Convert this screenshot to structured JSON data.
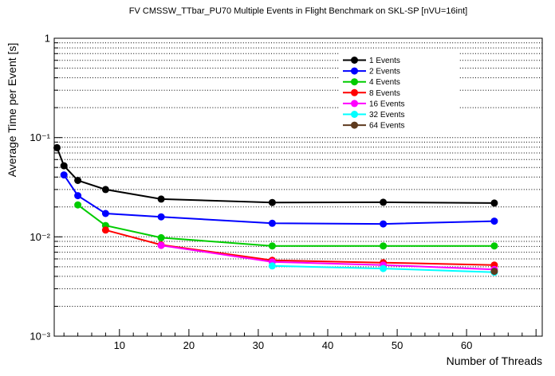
{
  "chart_data": {
    "type": "line",
    "title": "FV CMSSW_TTbar_PU70 Multiple Events in Flight Benchmark on SKL-SP [nVU=16int]",
    "xlabel": "Number of Threads",
    "ylabel": "Average Time per Event [s]",
    "x_scale": "linear",
    "y_scale": "log",
    "x_range": [
      0.6,
      70.9
    ],
    "y_range": [
      0.001,
      1
    ],
    "x_major_ticks": [
      10,
      20,
      30,
      40,
      50,
      60
    ],
    "x_minor_tick_step": 2,
    "y_decade_labels": [
      "1",
      "10⁻¹",
      "10⁻²",
      "10⁻³"
    ],
    "grid": "horizontal-dotted",
    "legend_position": "top-right",
    "series": [
      {
        "name": "1 Events",
        "color": "#000000",
        "x": [
          1,
          2,
          4,
          8,
          16,
          32,
          48,
          64
        ],
        "y": [
          0.079,
          0.052,
          0.037,
          0.03,
          0.024,
          0.0222,
          0.0223,
          0.0219
        ]
      },
      {
        "name": "2 Events",
        "color": "#0000ff",
        "x": [
          2,
          4,
          8,
          16,
          32,
          48,
          64
        ],
        "y": [
          0.042,
          0.026,
          0.0172,
          0.0159,
          0.0137,
          0.0135,
          0.0144
        ]
      },
      {
        "name": "4 Events",
        "color": "#00cc00",
        "x": [
          4,
          8,
          16,
          32,
          48,
          64
        ],
        "y": [
          0.021,
          0.013,
          0.0098,
          0.0081,
          0.0081,
          0.0081
        ]
      },
      {
        "name": "8 Events",
        "color": "#ff0000",
        "x": [
          8,
          16,
          32,
          48,
          64
        ],
        "y": [
          0.0117,
          0.0083,
          0.0058,
          0.0055,
          0.0052
        ]
      },
      {
        "name": "16 Events",
        "color": "#ff00ff",
        "x": [
          16,
          32,
          48,
          64
        ],
        "y": [
          0.0082,
          0.0056,
          0.0052,
          0.0047
        ]
      },
      {
        "name": "32 Events",
        "color": "#00ffff",
        "x": [
          32,
          48,
          64
        ],
        "y": [
          0.0051,
          0.0048,
          0.0044
        ]
      },
      {
        "name": "64 Events",
        "color": "#5e3a1e",
        "x": [
          64
        ],
        "y": [
          0.0045
        ]
      }
    ]
  }
}
